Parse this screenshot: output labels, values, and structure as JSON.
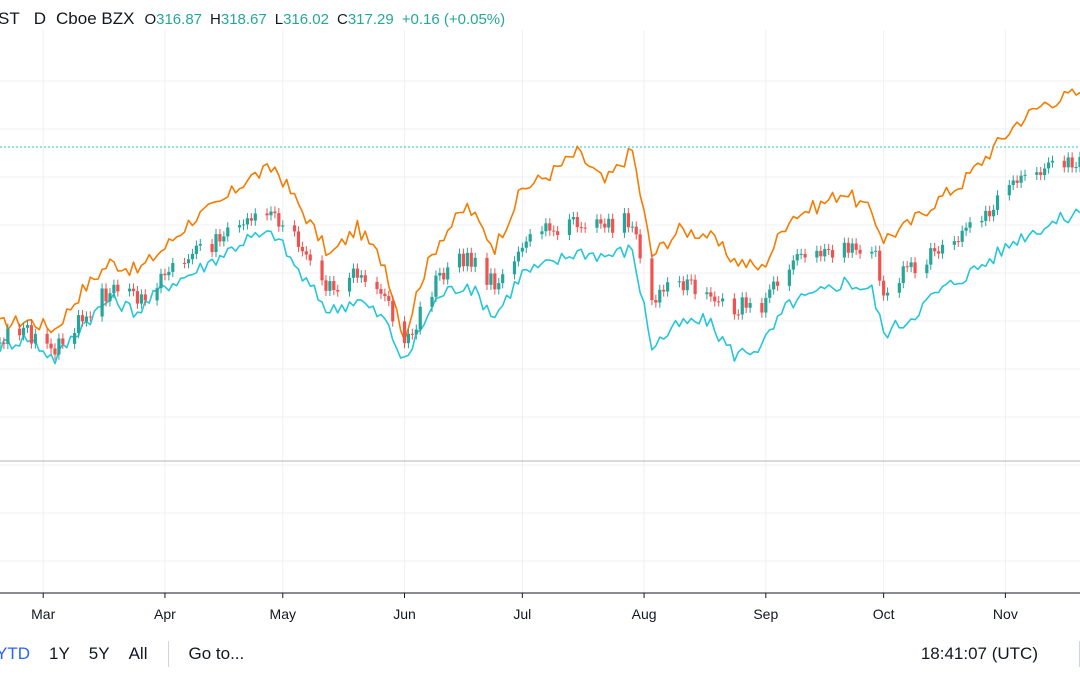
{
  "legend": {
    "symbol": "ST",
    "interval": "D",
    "exchange": "Cboe BZX",
    "open_key": "O",
    "open": "316.87",
    "high_key": "H",
    "high": "318.67",
    "low_key": "L",
    "low": "316.02",
    "close_key": "C",
    "close": "317.29",
    "change": "+0.16 (+0.05%)"
  },
  "toolbar": {
    "ranges": [
      "YTD",
      "1Y",
      "5Y",
      "All"
    ],
    "active_range": "YTD",
    "goto_label": "Go to...",
    "clock": "18:41:07 (UTC)"
  },
  "colors": {
    "up": "#26a69a",
    "down": "#ef5350",
    "orange_series": "#f57c00",
    "cyan_series": "#26c6da",
    "grid": "#eef0f3"
  },
  "chart_data": {
    "type": "line",
    "x_type": "date",
    "x_range": [
      "2020-02-19",
      "2020-11-20"
    ],
    "month_ticks": [
      {
        "label": "Mar",
        "date": "2020-03-01"
      },
      {
        "label": "Apr",
        "date": "2020-04-01"
      },
      {
        "label": "May",
        "date": "2020-05-01"
      },
      {
        "label": "Jun",
        "date": "2020-06-01"
      },
      {
        "label": "Jul",
        "date": "2020-07-01"
      },
      {
        "label": "Aug",
        "date": "2020-08-01"
      },
      {
        "label": "Sep",
        "date": "2020-09-01"
      },
      {
        "label": "Oct",
        "date": "2020-10-01"
      },
      {
        "label": "Nov",
        "date": "2020-11-01"
      }
    ],
    "x": [
      "2020-02-19",
      "2020-02-26",
      "2020-03-04",
      "2020-03-11",
      "2020-03-18",
      "2020-03-25",
      "2020-04-01",
      "2020-04-08",
      "2020-04-15",
      "2020-04-22",
      "2020-04-29",
      "2020-05-06",
      "2020-05-13",
      "2020-05-20",
      "2020-05-27",
      "2020-06-01",
      "2020-06-05",
      "2020-06-10",
      "2020-06-17",
      "2020-06-24",
      "2020-07-01",
      "2020-07-08",
      "2020-07-15",
      "2020-07-22",
      "2020-07-29",
      "2020-08-03",
      "2020-08-10",
      "2020-08-17",
      "2020-08-24",
      "2020-08-31",
      "2020-09-07",
      "2020-09-14",
      "2020-09-21",
      "2020-09-28",
      "2020-10-01",
      "2020-10-07",
      "2020-10-14",
      "2020-10-21",
      "2020-10-28",
      "2020-11-04",
      "2020-11-11",
      "2020-11-20"
    ],
    "series": [
      {
        "color": "#f57c00",
        "values": [
          0.8,
          0.9,
          0.7,
          1.6,
          2.25,
          2.05,
          2.6,
          3.25,
          3.6,
          4.2,
          4.45,
          3.45,
          2.4,
          3.05,
          2.2,
          0.5,
          1.8,
          2.8,
          3.55,
          2.6,
          3.95,
          4.3,
          4.8,
          4.1,
          4.85,
          2.4,
          3.0,
          2.9,
          2.3,
          2.1,
          3.3,
          3.55,
          3.9,
          3.4,
          2.8,
          3.1,
          3.65,
          4.1,
          4.8,
          5.5,
          5.95,
          6.2
        ]
      },
      {
        "color": "#26c6da",
        "values": [
          0.3,
          0.5,
          0.0,
          0.8,
          1.4,
          1.1,
          1.7,
          2.0,
          2.4,
          2.8,
          2.9,
          1.9,
          1.1,
          1.4,
          0.9,
          -0.1,
          0.7,
          1.5,
          1.75,
          1.0,
          2.0,
          2.2,
          2.5,
          2.4,
          2.55,
          0.3,
          0.8,
          0.9,
          0.1,
          0.3,
          1.3,
          1.5,
          1.8,
          1.6,
          0.6,
          0.9,
          1.5,
          1.9,
          2.3,
          2.8,
          3.1,
          3.4
        ]
      },
      {
        "type": "candlestick",
        "color_up": "#26a69a",
        "color_down": "#ef5350",
        "values": [
          0.5,
          0.6,
          0.2,
          1.0,
          1.6,
          1.4,
          2.0,
          2.4,
          2.8,
          3.2,
          3.35,
          2.5,
          1.6,
          2.0,
          1.4,
          0.3,
          1.1,
          2.0,
          2.4,
          1.7,
          2.7,
          3.0,
          3.2,
          3.1,
          3.3,
          1.4,
          1.7,
          1.6,
          1.2,
          1.3,
          2.2,
          2.4,
          2.7,
          2.6,
          1.7,
          2.0,
          2.5,
          2.9,
          3.4,
          4.1,
          4.4,
          4.7
        ]
      }
    ]
  }
}
